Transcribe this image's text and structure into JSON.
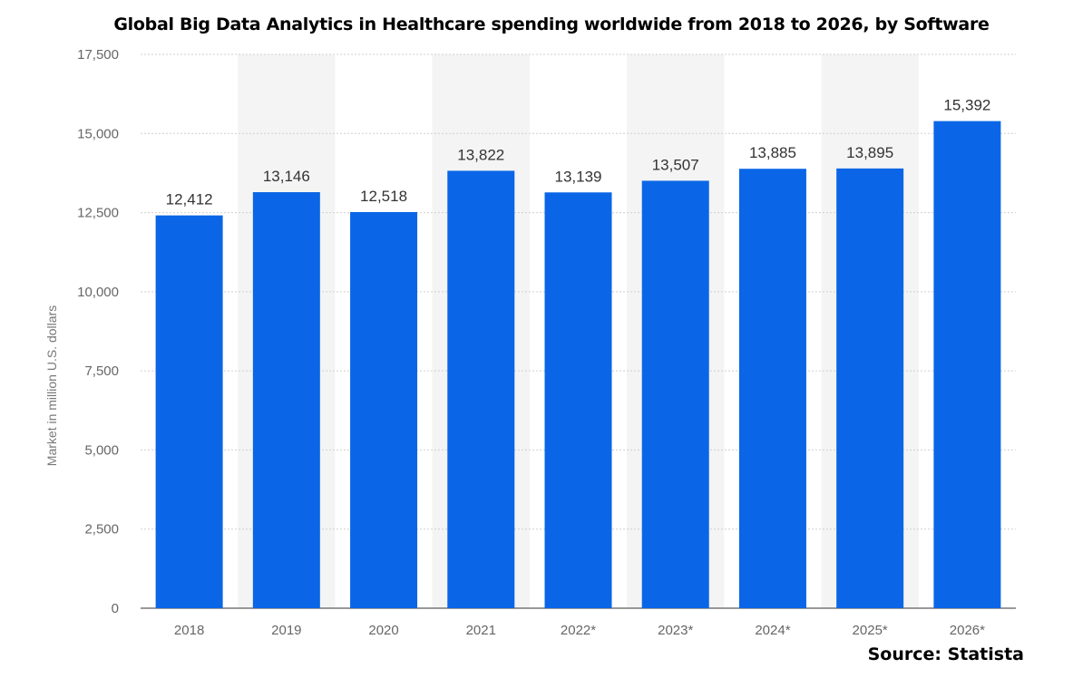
{
  "chart_data": {
    "type": "bar",
    "title": "Global Big Data Analytics in Healthcare spending worldwide from 2018 to 2026, by Software",
    "categories": [
      "2018",
      "2019",
      "2020",
      "2021",
      "2022*",
      "2023*",
      "2024*",
      "2025*",
      "2026*"
    ],
    "values": [
      12412,
      13146,
      12518,
      13822,
      13139,
      13507,
      13885,
      13895,
      15392
    ],
    "value_labels": [
      "12,412",
      "13,146",
      "12,518",
      "13,822",
      "13,139",
      "13,507",
      "13,885",
      "13,895",
      "15,392"
    ],
    "xlabel": "",
    "ylabel": "Market in million U.S. dollars",
    "ylim": [
      0,
      17500
    ],
    "yticks": [
      0,
      2500,
      5000,
      7500,
      10000,
      12500,
      15000,
      17500
    ],
    "ytick_labels": [
      "0",
      "2,500",
      "5,000",
      "7,500",
      "10,000",
      "12,500",
      "15,000",
      "17,500"
    ],
    "grid": true,
    "bar_color": "#0A66E6",
    "alternating_band_color": "#F4F4F4"
  },
  "source": "Source: Statista"
}
